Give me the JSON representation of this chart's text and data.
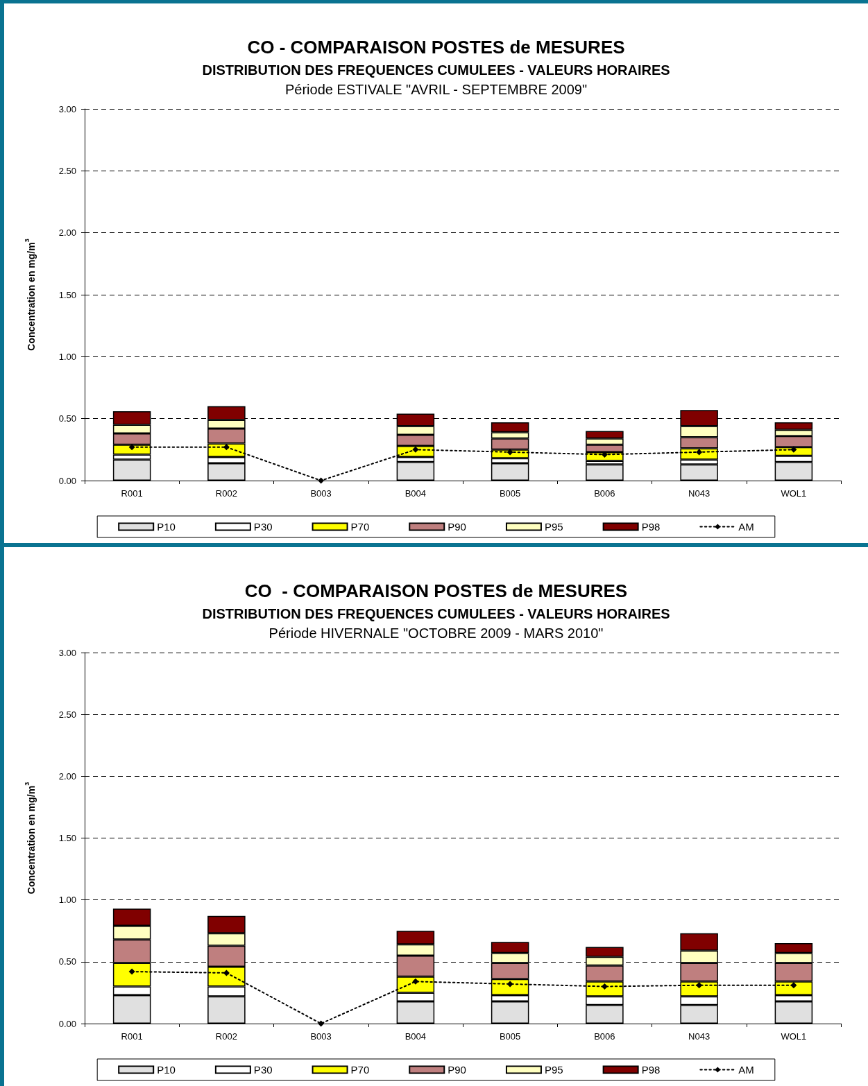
{
  "chart_data": [
    {
      "type": "bar",
      "stacked": true,
      "title": "CO - COMPARAISON POSTES de MESURES",
      "subtitle": "DISTRIBUTION DES FREQUENCES CUMULEES - VALEURS HORAIRES",
      "annotations": [
        "Période ESTIVALE \"AVRIL - SEPTEMBRE 2009\""
      ],
      "ylabel": "Concentration en mg/m$^{3}$",
      "categories": [
        "R001",
        "R002",
        "B003",
        "B004",
        "B005",
        "B006",
        "N043",
        "WOL1"
      ],
      "series": [
        {
          "name": "P10",
          "color": "#e0e0e0",
          "values": [
            0.17,
            0.14,
            null,
            0.15,
            0.14,
            0.13,
            0.13,
            0.15
          ]
        },
        {
          "name": "P30",
          "color": "#ffffff",
          "values": [
            0.04,
            0.05,
            null,
            0.04,
            0.04,
            0.03,
            0.04,
            0.05
          ]
        },
        {
          "name": "P70",
          "color": "#ffff00",
          "values": [
            0.08,
            0.11,
            null,
            0.09,
            0.07,
            0.07,
            0.09,
            0.07
          ]
        },
        {
          "name": "P90",
          "color": "#bf7f7f",
          "values": [
            0.09,
            0.12,
            null,
            0.09,
            0.09,
            0.06,
            0.09,
            0.09
          ]
        },
        {
          "name": "P95",
          "color": "#ffffc0",
          "values": [
            0.07,
            0.07,
            null,
            0.07,
            0.05,
            0.05,
            0.09,
            0.05
          ]
        },
        {
          "name": "P98",
          "color": "#800000",
          "values": [
            0.11,
            0.11,
            null,
            0.1,
            0.08,
            0.06,
            0.13,
            0.06
          ]
        },
        {
          "name": "AM",
          "type": "line",
          "color": "#000000",
          "values": [
            0.27,
            0.27,
            0,
            0.25,
            0.23,
            0.21,
            0.23,
            0.25
          ]
        }
      ],
      "marker": "diamond",
      "line_style": "dotted",
      "ylim": [
        0,
        3
      ],
      "yticks": [
        {
          "value": 0,
          "label": "0.00"
        },
        {
          "value": 0.5,
          "label": "0.50"
        },
        {
          "value": 1,
          "label": "1.00"
        },
        {
          "value": 1.5,
          "label": "1.50"
        },
        {
          "value": 2,
          "label": "2.00"
        },
        {
          "value": 2.5,
          "label": "2.50"
        },
        {
          "value": 3,
          "label": "3.00"
        }
      ],
      "grid": "y",
      "legend": "bottom"
    },
    {
      "type": "bar",
      "stacked": true,
      "title": "CO  - COMPARAISON POSTES de MESURES",
      "subtitle": "DISTRIBUTION DES FREQUENCES CUMULEES - VALEURS HORAIRES",
      "annotations": [
        "Période HIVERNALE \"OCTOBRE 2009 - MARS 2010\""
      ],
      "ylabel": "Concentration en mg/m$^{3}$",
      "categories": [
        "R001",
        "R002",
        "B003",
        "B004",
        "B005",
        "B006",
        "N043",
        "WOL1"
      ],
      "series": [
        {
          "name": "P10",
          "color": "#e0e0e0",
          "values": [
            0.23,
            0.22,
            null,
            0.18,
            0.18,
            0.15,
            0.15,
            0.18
          ]
        },
        {
          "name": "P30",
          "color": "#ffffff",
          "values": [
            0.07,
            0.08,
            null,
            0.07,
            0.05,
            0.07,
            0.07,
            0.05
          ]
        },
        {
          "name": "P70",
          "color": "#ffff00",
          "values": [
            0.19,
            0.16,
            null,
            0.13,
            0.13,
            0.12,
            0.12,
            0.11
          ]
        },
        {
          "name": "P90",
          "color": "#bf7f7f",
          "values": [
            0.19,
            0.17,
            null,
            0.17,
            0.13,
            0.13,
            0.15,
            0.15
          ]
        },
        {
          "name": "P95",
          "color": "#ffffc0",
          "values": [
            0.11,
            0.1,
            null,
            0.09,
            0.08,
            0.07,
            0.1,
            0.08
          ]
        },
        {
          "name": "P98",
          "color": "#800000",
          "values": [
            0.14,
            0.14,
            null,
            0.11,
            0.09,
            0.08,
            0.14,
            0.08
          ]
        },
        {
          "name": "AM",
          "type": "line",
          "color": "#000000",
          "values": [
            0.42,
            0.41,
            0,
            0.34,
            0.32,
            0.3,
            0.31,
            0.31
          ]
        }
      ],
      "marker": "diamond",
      "line_style": "dotted",
      "ylim": [
        0,
        3
      ],
      "yticks": [
        {
          "value": 0,
          "label": "0.00"
        },
        {
          "value": 0.5,
          "label": "0.50"
        },
        {
          "value": 1,
          "label": "1.00"
        },
        {
          "value": 1.5,
          "label": "1.50"
        },
        {
          "value": 2,
          "label": "2.00"
        },
        {
          "value": 2.5,
          "label": "2.50"
        },
        {
          "value": 3,
          "label": "3.00"
        }
      ],
      "grid": "y",
      "legend": "bottom"
    }
  ]
}
